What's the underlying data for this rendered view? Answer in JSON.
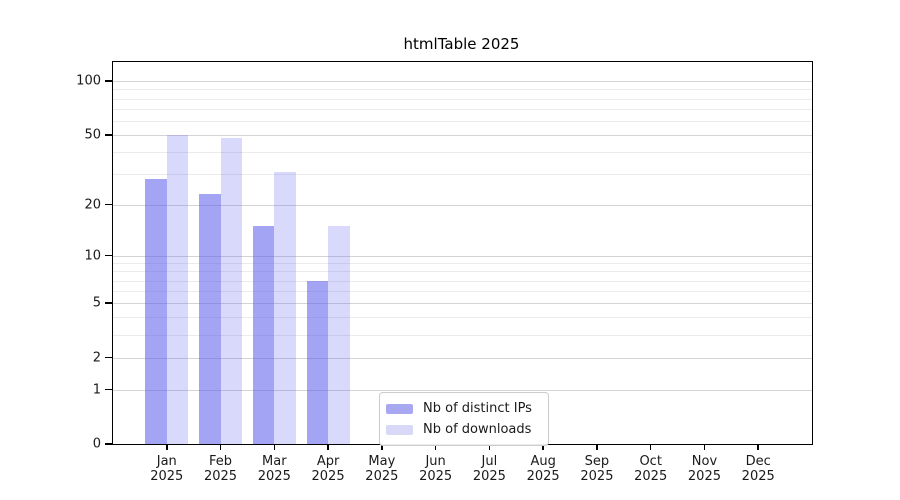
{
  "chart_data": {
    "type": "bar",
    "title": "htmlTable 2025",
    "x_categories": [
      {
        "month": "Jan",
        "year": "2025"
      },
      {
        "month": "Feb",
        "year": "2025"
      },
      {
        "month": "Mar",
        "year": "2025"
      },
      {
        "month": "Apr",
        "year": "2025"
      },
      {
        "month": "May",
        "year": "2025"
      },
      {
        "month": "Jun",
        "year": "2025"
      },
      {
        "month": "Jul",
        "year": "2025"
      },
      {
        "month": "Aug",
        "year": "2025"
      },
      {
        "month": "Sep",
        "year": "2025"
      },
      {
        "month": "Oct",
        "year": "2025"
      },
      {
        "month": "Nov",
        "year": "2025"
      },
      {
        "month": "Dec",
        "year": "2025"
      }
    ],
    "series": [
      {
        "id": "distinct-ips",
        "name": "Nb of distinct IPs",
        "color": "rgba(92,92,237,0.56)",
        "legend_color": "#a8a8f0",
        "values": [
          28,
          23,
          15,
          7,
          null,
          null,
          null,
          null,
          null,
          null,
          null,
          null
        ]
      },
      {
        "id": "downloads",
        "name": "Nb of downloads",
        "color": "rgba(92,92,237,0.235)",
        "legend_color": "#d9d9f7",
        "values": [
          50,
          48,
          31,
          15,
          null,
          null,
          null,
          null,
          null,
          null,
          null,
          null
        ]
      }
    ],
    "y_scale": "log10(1+x)",
    "y_ticks": [
      0,
      1,
      2,
      5,
      10,
      20,
      50,
      100
    ],
    "y_minor_ticks": [
      3,
      4,
      6,
      7,
      8,
      9,
      30,
      40,
      60,
      70,
      80,
      90
    ],
    "ylim": [
      0,
      128
    ],
    "grid": "horizontal",
    "legend_position": "inside-bottom-center"
  },
  "colors": {
    "background": "#ffffff",
    "axis": "#000000",
    "grid_major": "#d4d4d4",
    "grid_minor": "#ebebeb",
    "text": "#1a1a1a",
    "legend_border": "#cccccc"
  }
}
